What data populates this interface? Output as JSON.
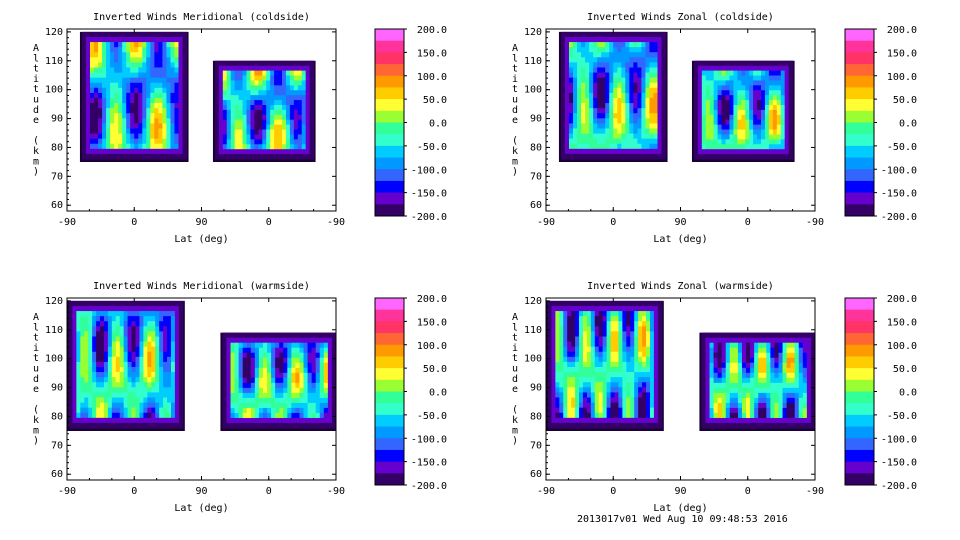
{
  "footer": "2013017v01 Wed Aug 10 09:48:53 2016",
  "colorbar": {
    "labels": [
      "200.0",
      "150.0",
      "100.0",
      "50.0",
      "0.0",
      "-50.0",
      "-100.0",
      "-150.0",
      "-200.0"
    ],
    "colors": [
      "#ff66ff",
      "#ff3399",
      "#ff3366",
      "#ff6633",
      "#ff9900",
      "#ffcc00",
      "#ffff33",
      "#99ff33",
      "#33ff99",
      "#33ffcc",
      "#00ccff",
      "#0099ff",
      "#3366ff",
      "#0000ff",
      "#6600cc",
      "#330066"
    ]
  },
  "chart_data": [
    {
      "type": "heatmap",
      "title": "Inverted Winds Meridional (coldside)",
      "xlabel": "Lat (deg)",
      "ylabel": "Altitude (km)",
      "xticks": [
        "-90",
        "0",
        "90",
        "0",
        "-90"
      ],
      "yticks": [
        "60",
        "70",
        "80",
        "90",
        "100",
        "110",
        "120"
      ],
      "ylim": [
        58,
        121
      ],
      "zlim": [
        -200,
        200
      ],
      "regions": [
        {
          "x": [
            -70,
            70
          ],
          "y": [
            76,
            120
          ]
        },
        {
          "x": [
            108,
            240
          ],
          "y": [
            76,
            110
          ]
        }
      ]
    },
    {
      "type": "heatmap",
      "title": "Inverted Winds Zonal (coldside)",
      "xlabel": "Lat (deg)",
      "ylabel": "Altitude (km)",
      "xticks": [
        "-90",
        "0",
        "90",
        "0",
        "-90"
      ],
      "yticks": [
        "60",
        "70",
        "80",
        "90",
        "100",
        "110",
        "120"
      ],
      "ylim": [
        58,
        121
      ],
      "zlim": [
        -200,
        200
      ],
      "regions": [
        {
          "x": [
            -70,
            70
          ],
          "y": [
            76,
            120
          ]
        },
        {
          "x": [
            108,
            240
          ],
          "y": [
            76,
            110
          ]
        }
      ]
    },
    {
      "type": "heatmap",
      "title": "Inverted Winds Meridional (warmside)",
      "xlabel": "Lat (deg)",
      "ylabel": "Altitude (km)",
      "xticks": [
        "-90",
        "0",
        "90",
        "0",
        "-90"
      ],
      "yticks": [
        "60",
        "70",
        "80",
        "90",
        "100",
        "110",
        "120"
      ],
      "ylim": [
        58,
        121
      ],
      "zlim": [
        -200,
        200
      ],
      "regions": [
        {
          "x": [
            -88,
            65
          ],
          "y": [
            76,
            120
          ]
        },
        {
          "x": [
            118,
            270
          ],
          "y": [
            76,
            109
          ]
        }
      ]
    },
    {
      "type": "heatmap",
      "title": "Inverted Winds Zonal (warmside)",
      "xlabel": "Lat (deg)",
      "ylabel": "Altitude (km)",
      "xticks": [
        "-90",
        "0",
        "90",
        "0",
        "-90"
      ],
      "yticks": [
        "60",
        "70",
        "80",
        "90",
        "100",
        "110",
        "120"
      ],
      "ylim": [
        58,
        121
      ],
      "zlim": [
        -200,
        200
      ],
      "regions": [
        {
          "x": [
            -88,
            65
          ],
          "y": [
            76,
            120
          ]
        },
        {
          "x": [
            118,
            270
          ],
          "y": [
            76,
            109
          ]
        }
      ]
    }
  ]
}
